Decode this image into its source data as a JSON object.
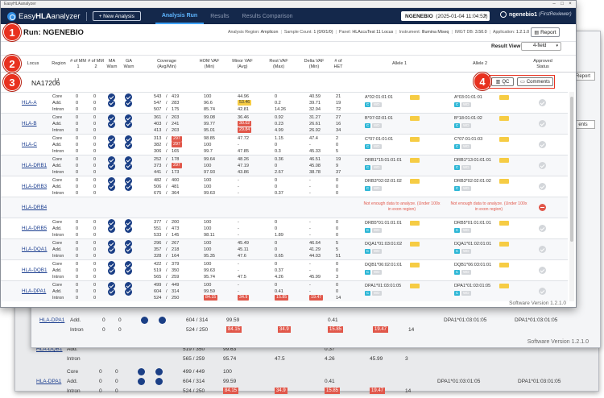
{
  "window_title": "EasyHLAanalyzer",
  "nav": {
    "brand_pre": "Easy",
    "brand_bold": "HLA",
    "brand_post": "analyzer",
    "new_analysis": "+ New Analysis",
    "tabs": [
      "Analysis Run",
      "Results",
      "Results Comparison"
    ],
    "project": "NGENEBIO",
    "project_date": "(2025-01-04 11:04:52)",
    "user": "ngenebio1",
    "user_role": "(FirstReviewer)"
  },
  "run": {
    "title": "Run: NGENEBIO",
    "meta": [
      {
        "k": "Analysis Region:",
        "v": "Amplicon"
      },
      {
        "k": "Sample Count:",
        "v": "1 (0/0/1/0)"
      },
      {
        "k": "Panel:",
        "v": "HLAccuTest 11 Locus"
      },
      {
        "k": "Instrument:",
        "v": "Illumina Miseq"
      },
      {
        "k": "IMGT DB:",
        "v": "3.50.0"
      },
      {
        "k": "Application:",
        "v": "1.2.1.0"
      }
    ],
    "report_label": "Report"
  },
  "result_view": {
    "label": "Result View:",
    "value": "4-field"
  },
  "headers": {
    "locus": "Locus",
    "region": "Region",
    "mm1": "# of MM 1",
    "mm2": "# of MM 2",
    "ma": "MA Warn",
    "ga": "GA Warn",
    "coverage": "Coverage (Avg/Min)",
    "hom": "HOM VAF (Min)",
    "minor": "Minor VAF (Avg)",
    "rest": "Rest VAF (Max)",
    "delta": "Delta VAF (Min)",
    "het": "# of HET",
    "allele1": "Allele 1",
    "allele2": "Allele 2",
    "approved": "Approved Status"
  },
  "sample": {
    "name": "NA17206",
    "qc_label": "QC",
    "comments_label": "Comments"
  },
  "genes": [
    {
      "name": "HLA-A",
      "rows": [
        {
          "region": "Core",
          "mm1": "0",
          "mm2": "0",
          "cov_a": "543",
          "cov_m": "419",
          "hom": "100",
          "minor": "44.96",
          "rest": "0",
          "delta": "40.59",
          "het": "21"
        },
        {
          "region": "Add.",
          "mm1": "0",
          "mm2": "0",
          "cov_a": "547",
          "cov_m": "283",
          "hom": "96.6",
          "minor": "53.46",
          "rest": "0.2",
          "delta": "39.71",
          "het": "19"
        },
        {
          "region": "Intron",
          "mm1": "0",
          "mm2": "0",
          "cov_a": "507",
          "cov_m": "175",
          "hom": "85.74",
          "minor": "42.81",
          "rest": "14.26",
          "delta": "32.94",
          "het": "72"
        }
      ],
      "a1": "A*02:01:01:01",
      "a2": "A*03:01:01:01",
      "approve": "ok"
    },
    {
      "name": "HLA-B",
      "rows": [
        {
          "region": "Core",
          "mm1": "0",
          "mm2": "0",
          "cov_a": "361",
          "cov_m": "203",
          "hom": "99.08",
          "minor": "36.46",
          "rest": "0.92",
          "delta": "31.27",
          "het": "27"
        },
        {
          "region": "Add.",
          "mm1": "0",
          "mm2": "0",
          "cov_a": "403",
          "cov_m": "241",
          "hom": "99.77",
          "minor": "30.02",
          "rest": "0.23",
          "delta": "26.61",
          "het": "16"
        },
        {
          "region": "Intron",
          "mm1": "0",
          "mm2": "0",
          "cov_a": "413",
          "cov_m": "203",
          "hom": "95.01",
          "minor": "29.84",
          "rest": "4.99",
          "delta": "26.92",
          "het": "34"
        }
      ],
      "a1": "B*07:02:01:01",
      "a2": "B*18:01:01:02",
      "approve": "ok"
    },
    {
      "name": "HLA-C",
      "rows": [
        {
          "region": "Core",
          "mm1": "0",
          "mm2": "0",
          "cov_a": "313",
          "cov_m": "297",
          "hom": "98.85",
          "minor": "47.72",
          "rest": "1.15",
          "delta": "47.4",
          "het": "2"
        },
        {
          "region": "Add.",
          "mm1": "0",
          "mm2": "0",
          "cov_a": "382",
          "cov_m": "297",
          "hom": "100",
          "minor": "-",
          "rest": "0",
          "delta": "-",
          "het": "0"
        },
        {
          "region": "Intron",
          "mm1": "0",
          "mm2": "0",
          "cov_a": "306",
          "cov_m": "165",
          "hom": "99.7",
          "minor": "47.85",
          "rest": "0.3",
          "delta": "45.33",
          "het": "5"
        }
      ],
      "a1": "C*07:01:01:01",
      "a2": "C*07:01:01:03",
      "approve": "ok"
    },
    {
      "name": "HLA-DRB1",
      "rows": [
        {
          "region": "Core",
          "mm1": "0",
          "mm2": "0",
          "cov_a": "252",
          "cov_m": "178",
          "hom": "99.64",
          "minor": "48.26",
          "rest": "0.36",
          "delta": "46.51",
          "het": "19"
        },
        {
          "region": "Add.",
          "mm1": "0",
          "mm2": "0",
          "cov_a": "373",
          "cov_m": "297",
          "hom": "100",
          "minor": "47.19",
          "rest": "0",
          "delta": "45.08",
          "het": "9"
        },
        {
          "region": "Intron",
          "mm1": "0",
          "mm2": "0",
          "cov_a": "441",
          "cov_m": "173",
          "hom": "97.93",
          "minor": "43.86",
          "rest": "2.67",
          "delta": "38.78",
          "het": "37"
        }
      ],
      "a1": "DRB1*15:01:01:01",
      "a2": "DRB1*13:01:01:01",
      "approve": "ok"
    },
    {
      "name": "HLA-DRB3",
      "rows": [
        {
          "region": "Core",
          "mm1": "0",
          "mm2": "0",
          "cov_a": "482",
          "cov_m": "400",
          "hom": "100",
          "minor": "-",
          "rest": "0",
          "delta": "-",
          "het": "0"
        },
        {
          "region": "Add.",
          "mm1": "0",
          "mm2": "0",
          "cov_a": "506",
          "cov_m": "481",
          "hom": "100",
          "minor": "-",
          "rest": "0",
          "delta": "-",
          "het": "0"
        },
        {
          "region": "Intron",
          "mm1": "0",
          "mm2": "0",
          "cov_a": "675",
          "cov_m": "364",
          "hom": "99.63",
          "minor": "-",
          "rest": "0.37",
          "delta": "-",
          "het": "0"
        }
      ],
      "a1": "DRB3*02:02:01:02",
      "a2": "DRB3*02:02:01:02",
      "approve": "ok"
    },
    {
      "name": "HLA-DRB4",
      "nodata": "Not enough data to analyze. (Under 100x in exon region)",
      "approve": "reject"
    },
    {
      "name": "HLA-DRB5",
      "rows": [
        {
          "region": "Core",
          "mm1": "0",
          "mm2": "0",
          "cov_a": "377",
          "cov_m": "200",
          "hom": "100",
          "minor": "-",
          "rest": "0",
          "delta": "-",
          "het": "0"
        },
        {
          "region": "Add.",
          "mm1": "0",
          "mm2": "0",
          "cov_a": "551",
          "cov_m": "473",
          "hom": "100",
          "minor": "-",
          "rest": "0",
          "delta": "-",
          "het": "0"
        },
        {
          "region": "Intron",
          "mm1": "0",
          "mm2": "0",
          "cov_a": "533",
          "cov_m": "145",
          "hom": "98.11",
          "minor": "-",
          "rest": "1.89",
          "delta": "-",
          "het": "0"
        }
      ],
      "a1": "DRB5*01:01:01:01",
      "a2": "DRB5*01:01:01:01",
      "approve": "ok"
    },
    {
      "name": "HLA-DQA1",
      "rows": [
        {
          "region": "Core",
          "mm1": "0",
          "mm2": "0",
          "cov_a": "296",
          "cov_m": "267",
          "hom": "100",
          "minor": "45.49",
          "rest": "0",
          "delta": "46.64",
          "het": "5"
        },
        {
          "region": "Add.",
          "mm1": "0",
          "mm2": "0",
          "cov_a": "357",
          "cov_m": "218",
          "hom": "100",
          "minor": "45.11",
          "rest": "0",
          "delta": "41.29",
          "het": "5"
        },
        {
          "region": "Intron",
          "mm1": "0",
          "mm2": "0",
          "cov_a": "328",
          "cov_m": "164",
          "hom": "95.35",
          "minor": "47.6",
          "rest": "0.65",
          "delta": "44.03",
          "het": "51"
        }
      ],
      "a1": "DQA1*01:03:01:02",
      "a2": "DQA1*01:02:01:01",
      "approve": "ok"
    },
    {
      "name": "HLA-DQB1",
      "rows": [
        {
          "region": "Core",
          "mm1": "0",
          "mm2": "0",
          "cov_a": "422",
          "cov_m": "379",
          "hom": "100",
          "minor": "-",
          "rest": "0",
          "delta": "-",
          "het": "0"
        },
        {
          "region": "Add.",
          "mm1": "0",
          "mm2": "0",
          "cov_a": "519",
          "cov_m": "350",
          "hom": "99.63",
          "minor": "-",
          "rest": "0.37",
          "delta": "-",
          "het": "0"
        },
        {
          "region": "Intron",
          "mm1": "0",
          "mm2": "0",
          "cov_a": "565",
          "cov_m": "259",
          "hom": "95.74",
          "minor": "47.5",
          "rest": "4.26",
          "delta": "45.99",
          "het": "3"
        }
      ],
      "a1": "DQB1*06:02:01:01",
      "a2": "DQB1*06:03:01:01",
      "approve": "ok"
    },
    {
      "name": "HLA-DPA1",
      "rows": [
        {
          "region": "Core",
          "mm1": "0",
          "mm2": "0",
          "cov_a": "499",
          "cov_m": "449",
          "hom": "100",
          "minor": "-",
          "rest": "0",
          "delta": "-",
          "het": "0"
        },
        {
          "region": "Add.",
          "mm1": "0",
          "mm2": "0",
          "cov_a": "604",
          "cov_m": "314",
          "hom": "99.59",
          "minor": "-",
          "rest": "0.41",
          "delta": "-",
          "het": "0"
        },
        {
          "region": "Intron",
          "mm1": "0",
          "mm2": "0",
          "cov_a": "524",
          "cov_m": "250",
          "hom": "84.15",
          "minor": "34.9",
          "rest": "15.85",
          "delta": "19.47",
          "het": "14"
        }
      ],
      "a1": "DPA1*01:03:01:05",
      "a2": "DPA1*01:03:01:05",
      "approve": "ok"
    }
  ],
  "footer": "Software Version 1.2.1.0",
  "callouts": [
    "1",
    "2",
    "3",
    "4"
  ]
}
